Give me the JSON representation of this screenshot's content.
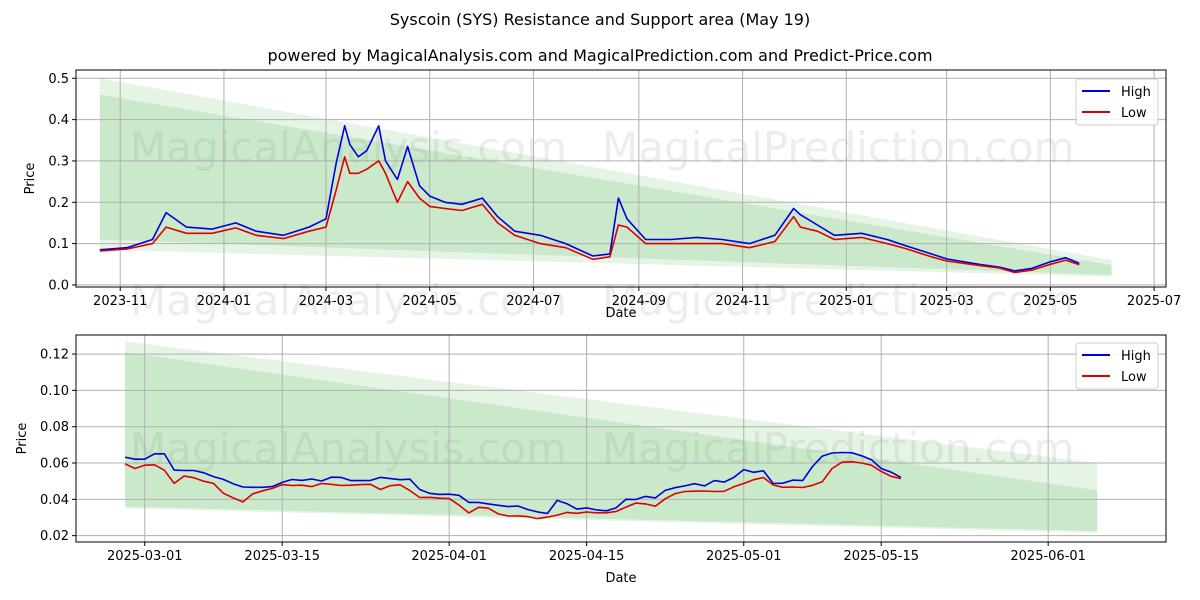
{
  "title": "Syscoin (SYS) Resistance and Support area (May 19)",
  "subtitle": "powered by MagicalAnalysis.com and MagicalPrediction.com and Predict-Price.com",
  "watermarks": [
    "MagicalAnalysis.com",
    "MagicalPrediction.com"
  ],
  "colors": {
    "high": "#0000dd",
    "low": "#dd0000",
    "band": "#4caf50",
    "grid": "#b0b0b0"
  },
  "chart_data": [
    {
      "type": "line",
      "xlabel": "Date",
      "ylabel": "Price",
      "grid": true,
      "legend_position": "top-right",
      "xlim": [
        "2023-10-06",
        "2025-07-08"
      ],
      "ylim": [
        -0.005,
        0.52
      ],
      "x_ticks": [
        "2023-11",
        "2024-01",
        "2024-03",
        "2024-05",
        "2024-07",
        "2024-09",
        "2024-11",
        "2025-01",
        "2025-03",
        "2025-05",
        "2025-07"
      ],
      "y_ticks": [
        "0.0",
        "0.1",
        "0.2",
        "0.3",
        "0.4",
        "0.5"
      ],
      "band": {
        "x_start": "2023-10-20",
        "x_end": "2025-06-06",
        "outer_top": [
          0.5,
          0.06
        ],
        "inner_top": [
          0.46,
          0.048
        ],
        "inner_bottom": [
          0.11,
          0.024
        ],
        "outer_bottom": [
          0.085,
          0.02
        ]
      },
      "x": [
        "2023-10-20",
        "2023-11-05",
        "2023-11-20",
        "2023-11-28",
        "2023-12-10",
        "2023-12-25",
        "2024-01-08",
        "2024-01-20",
        "2024-02-05",
        "2024-02-20",
        "2024-03-01",
        "2024-03-07",
        "2024-03-12",
        "2024-03-15",
        "2024-03-20",
        "2024-03-25",
        "2024-04-01",
        "2024-04-05",
        "2024-04-12",
        "2024-04-18",
        "2024-04-25",
        "2024-05-01",
        "2024-05-10",
        "2024-05-20",
        "2024-06-01",
        "2024-06-10",
        "2024-06-20",
        "2024-07-05",
        "2024-07-20",
        "2024-08-05",
        "2024-08-15",
        "2024-08-20",
        "2024-08-25",
        "2024-09-05",
        "2024-09-20",
        "2024-10-05",
        "2024-10-20",
        "2024-11-05",
        "2024-11-20",
        "2024-12-01",
        "2024-12-05",
        "2024-12-15",
        "2024-12-25",
        "2025-01-10",
        "2025-01-25",
        "2025-02-05",
        "2025-02-20",
        "2025-03-01",
        "2025-03-20",
        "2025-04-01",
        "2025-04-10",
        "2025-04-20",
        "2025-05-01",
        "2025-05-10",
        "2025-05-18"
      ],
      "series": [
        {
          "name": "High",
          "values": [
            0.085,
            0.09,
            0.11,
            0.175,
            0.14,
            0.135,
            0.15,
            0.13,
            0.12,
            0.14,
            0.16,
            0.295,
            0.385,
            0.34,
            0.31,
            0.325,
            0.385,
            0.3,
            0.255,
            0.335,
            0.24,
            0.215,
            0.2,
            0.195,
            0.21,
            0.165,
            0.13,
            0.12,
            0.1,
            0.07,
            0.075,
            0.21,
            0.16,
            0.11,
            0.11,
            0.115,
            0.11,
            0.1,
            0.12,
            0.185,
            0.17,
            0.145,
            0.12,
            0.125,
            0.11,
            0.095,
            0.075,
            0.063,
            0.05,
            0.043,
            0.034,
            0.04,
            0.056,
            0.066,
            0.052
          ]
        },
        {
          "name": "Low",
          "values": [
            0.082,
            0.087,
            0.1,
            0.14,
            0.125,
            0.125,
            0.138,
            0.12,
            0.112,
            0.13,
            0.14,
            0.23,
            0.31,
            0.27,
            0.27,
            0.28,
            0.3,
            0.27,
            0.2,
            0.25,
            0.21,
            0.19,
            0.185,
            0.18,
            0.195,
            0.15,
            0.12,
            0.1,
            0.09,
            0.062,
            0.068,
            0.145,
            0.14,
            0.1,
            0.1,
            0.1,
            0.1,
            0.09,
            0.105,
            0.165,
            0.14,
            0.13,
            0.11,
            0.115,
            0.1,
            0.088,
            0.068,
            0.058,
            0.047,
            0.041,
            0.03,
            0.036,
            0.05,
            0.06,
            0.049
          ]
        }
      ]
    },
    {
      "type": "line",
      "xlabel": "Date",
      "ylabel": "Price",
      "grid": true,
      "legend_position": "top-right",
      "xlim": [
        "2025-02-22",
        "2025-06-13"
      ],
      "ylim": [
        0.0165,
        0.1305
      ],
      "x_ticks": [
        "2025-03-01",
        "2025-03-15",
        "2025-04-01",
        "2025-04-15",
        "2025-05-01",
        "2025-05-15",
        "2025-06-01"
      ],
      "y_ticks": [
        "0.02",
        "0.04",
        "0.06",
        "0.08",
        "0.10",
        "0.12"
      ],
      "band": {
        "x_start": "2025-02-27",
        "x_end": "2025-06-06",
        "outer_top": [
          0.127,
          0.06
        ],
        "inner_top": [
          0.121,
          0.045
        ],
        "inner_bottom": [
          0.036,
          0.0225
        ],
        "outer_bottom": [
          0.035,
          0.0215
        ]
      },
      "x": [
        "2025-02-27",
        "2025-02-28",
        "2025-03-01",
        "2025-03-02",
        "2025-03-03",
        "2025-03-04",
        "2025-03-05",
        "2025-03-06",
        "2025-03-07",
        "2025-03-08",
        "2025-03-09",
        "2025-03-10",
        "2025-03-11",
        "2025-03-12",
        "2025-03-13",
        "2025-03-14",
        "2025-03-15",
        "2025-03-16",
        "2025-03-17",
        "2025-03-18",
        "2025-03-19",
        "2025-03-20",
        "2025-03-21",
        "2025-03-22",
        "2025-03-23",
        "2025-03-24",
        "2025-03-25",
        "2025-03-26",
        "2025-03-27",
        "2025-03-28",
        "2025-03-29",
        "2025-03-30",
        "2025-03-31",
        "2025-04-01",
        "2025-04-02",
        "2025-04-03",
        "2025-04-04",
        "2025-04-05",
        "2025-04-06",
        "2025-04-07",
        "2025-04-08",
        "2025-04-09",
        "2025-04-10",
        "2025-04-11",
        "2025-04-12",
        "2025-04-13",
        "2025-04-14",
        "2025-04-15",
        "2025-04-16",
        "2025-04-17",
        "2025-04-18",
        "2025-04-19",
        "2025-04-20",
        "2025-04-21",
        "2025-04-22",
        "2025-04-23",
        "2025-04-24",
        "2025-04-25",
        "2025-04-26",
        "2025-04-27",
        "2025-04-28",
        "2025-04-29",
        "2025-04-30",
        "2025-05-01",
        "2025-05-02",
        "2025-05-03",
        "2025-05-04",
        "2025-05-05",
        "2025-05-06",
        "2025-05-07",
        "2025-05-08",
        "2025-05-09",
        "2025-05-10",
        "2025-05-11",
        "2025-05-12",
        "2025-05-13",
        "2025-05-14",
        "2025-05-15",
        "2025-05-16",
        "2025-05-17"
      ],
      "series": [
        {
          "name": "High",
          "values": [
            0.0632,
            0.0621,
            0.0621,
            0.0651,
            0.0651,
            0.0561,
            0.0559,
            0.0559,
            0.0546,
            0.0525,
            0.051,
            0.0486,
            0.0468,
            0.0466,
            0.0466,
            0.047,
            0.0493,
            0.0509,
            0.0504,
            0.0512,
            0.0501,
            0.0522,
            0.0521,
            0.0503,
            0.0503,
            0.0504,
            0.0521,
            0.0514,
            0.0508,
            0.0511,
            0.0454,
            0.0433,
            0.0427,
            0.0428,
            0.0422,
            0.0383,
            0.0383,
            0.0375,
            0.0367,
            0.036,
            0.0363,
            0.0344,
            0.0331,
            0.0322,
            0.0394,
            0.0376,
            0.0346,
            0.0353,
            0.0342,
            0.0337,
            0.0353,
            0.04,
            0.0399,
            0.0416,
            0.0408,
            0.0449,
            0.0464,
            0.0474,
            0.0486,
            0.0474,
            0.0503,
            0.0495,
            0.0521,
            0.0564,
            0.0549,
            0.0557,
            0.0487,
            0.0489,
            0.0506,
            0.0503,
            0.0581,
            0.0638,
            0.0655,
            0.0658,
            0.0656,
            0.064,
            0.0618,
            0.057,
            0.055,
            0.0521
          ]
        },
        {
          "name": "Low",
          "values": [
            0.0595,
            0.057,
            0.0588,
            0.059,
            0.056,
            0.0488,
            0.0528,
            0.0519,
            0.05,
            0.0488,
            0.0434,
            0.0408,
            0.0386,
            0.043,
            0.0447,
            0.046,
            0.0481,
            0.0476,
            0.0478,
            0.047,
            0.0487,
            0.0483,
            0.0476,
            0.0478,
            0.0481,
            0.0483,
            0.0454,
            0.0475,
            0.048,
            0.0448,
            0.041,
            0.0411,
            0.0406,
            0.0404,
            0.0368,
            0.0325,
            0.0356,
            0.0351,
            0.032,
            0.0308,
            0.0309,
            0.0305,
            0.0294,
            0.0302,
            0.0313,
            0.0328,
            0.0323,
            0.033,
            0.0326,
            0.0326,
            0.0333,
            0.0357,
            0.0379,
            0.0375,
            0.0362,
            0.0403,
            0.0431,
            0.0443,
            0.0445,
            0.0446,
            0.0443,
            0.0444,
            0.0469,
            0.0487,
            0.0508,
            0.052,
            0.0479,
            0.0466,
            0.0468,
            0.0465,
            0.0477,
            0.0497,
            0.057,
            0.0604,
            0.0607,
            0.06,
            0.0588,
            0.0554,
            0.0527,
            0.0514
          ]
        }
      ]
    }
  ]
}
